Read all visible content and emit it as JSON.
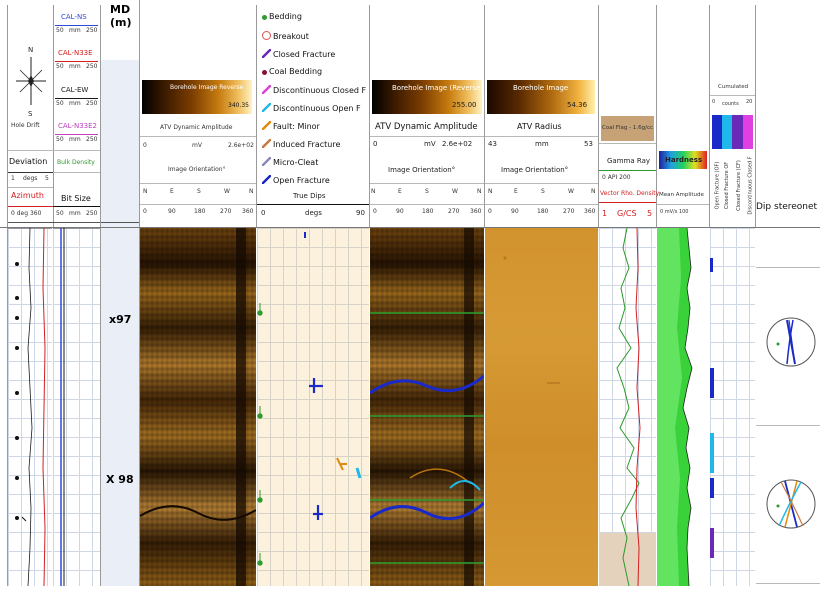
{
  "drift_track": {
    "curves": [
      "CAL-NS",
      "CAL-N33E",
      "CAL-EW",
      "CAL-N33E2"
    ],
    "curve_colors": [
      "#2f4bd6",
      "#d32020",
      "#1a1a1a",
      "#c040c0"
    ],
    "scale_left": "50",
    "scale_unit": "mm",
    "scale_right": "250",
    "compass_n": "N",
    "compass_s": "S",
    "hole_drift": "Hole Drift",
    "deviation": "Deviation",
    "deviation_left": "1",
    "deviation_unit": "degs",
    "deviation_right": "5",
    "azimuth": "Azimuth",
    "azimuth_scale": "0   deg  360",
    "bulk_density": "Bulk Density",
    "bit_size": "Bit Size",
    "bit_scale_left": "50",
    "bit_scale_unit": "mm",
    "bit_scale_right": "250"
  },
  "depth": {
    "header_line1": "MD",
    "header_line2": "(m)",
    "marker_a": "x97",
    "marker_b": "X 98"
  },
  "atv_small": {
    "title": "ATV Dynamic Amplitude",
    "cbar_label": "Borehole Image Reverse",
    "cbar_value": "340.35",
    "scale_left": "0",
    "scale_unit": "mV",
    "scale_right": "2.6e+02",
    "orientation": "Image Orientation°",
    "ticks": [
      "N",
      "E",
      "S",
      "W",
      "N"
    ],
    "tick_vals": [
      "0",
      "90",
      "180",
      "270",
      "360"
    ]
  },
  "legend": {
    "items": [
      {
        "label": "Bedding",
        "color": "#2e9b2e",
        "icon": "dot-icon"
      },
      {
        "label": "Breakout",
        "color": "#e05050",
        "icon": "breakout-icon"
      },
      {
        "label": "Closed Fracture",
        "color": "#6a2ab8",
        "icon": "line-icon"
      },
      {
        "label": "Coal Bedding",
        "color": "#8a1030",
        "icon": "dot-icon"
      },
      {
        "label": "Discontinuous Closed F",
        "color": "#e040e0",
        "icon": "line-icon"
      },
      {
        "label": "Discontinuous Open F",
        "color": "#20b8e8",
        "icon": "line-icon"
      },
      {
        "label": "Fault: Minor",
        "color": "#e08a10",
        "icon": "line-icon"
      },
      {
        "label": "Induced Fracture",
        "color": "#c87a40",
        "icon": "line-icon"
      },
      {
        "label": "Micro-Cleat",
        "color": "#8a8ab8",
        "icon": "line-icon"
      },
      {
        "label": "Open Fracture",
        "color": "#1a2ac8",
        "icon": "line-icon"
      }
    ],
    "true_dips": "True Dips",
    "dip_left": "0",
    "dip_unit": "degs",
    "dip_right": "90"
  },
  "atv_large": {
    "cbar_label": "Borehole Image (Reverse)",
    "cbar_value": "255.00",
    "title": "ATV Dynamic Amplitude",
    "scale_left": "0",
    "scale_unit": "mV",
    "scale_right": "2.6e+02",
    "orientation": "Image Orientation°",
    "ticks": [
      "N",
      "E",
      "S",
      "W",
      "N"
    ],
    "tick_vals": [
      "0",
      "90",
      "180",
      "270",
      "360"
    ]
  },
  "radius": {
    "cbar_label": "Borehole Image",
    "cbar_value": "54.36",
    "title": "ATV Radius",
    "scale_left": "43",
    "scale_unit": "mm",
    "scale_right": "53",
    "orientation": "Image Orientation°",
    "ticks": [
      "N",
      "E",
      "S",
      "W",
      "N"
    ],
    "tick_vals": [
      "0",
      "90",
      "180",
      "270",
      "360"
    ]
  },
  "gamma": {
    "coal_flag": "Coal Flag - 1.6g/cc",
    "gamma_ray": "Gamma Ray",
    "gamma_scale": "0    API    200",
    "density": "Vector Rho. Density",
    "density_left": "1",
    "density_unit": "G/CS",
    "density_right": "5"
  },
  "hardness": {
    "title": "Hardness",
    "sub": "Mean Amplitude",
    "scale": "0  mV/s  100"
  },
  "cumulated": {
    "title": "Cumulated",
    "scale_left": "0",
    "scale_unit": "counts",
    "scale_right": "20",
    "labels": [
      "Open Fracture (OF)",
      "Closed Fracture OF",
      "Closed Fracture (CF)",
      "Discontinuous Closed F"
    ]
  },
  "stereonet": {
    "title": "Dip stereonet"
  },
  "colors": {
    "bedding": "#2e9b2e",
    "open_fracture": "#1a2ac8",
    "fault_minor": "#e08a10",
    "disc_open": "#20b8e8",
    "gamma_line": "#2a9a2a",
    "density_line": "#d32020"
  }
}
